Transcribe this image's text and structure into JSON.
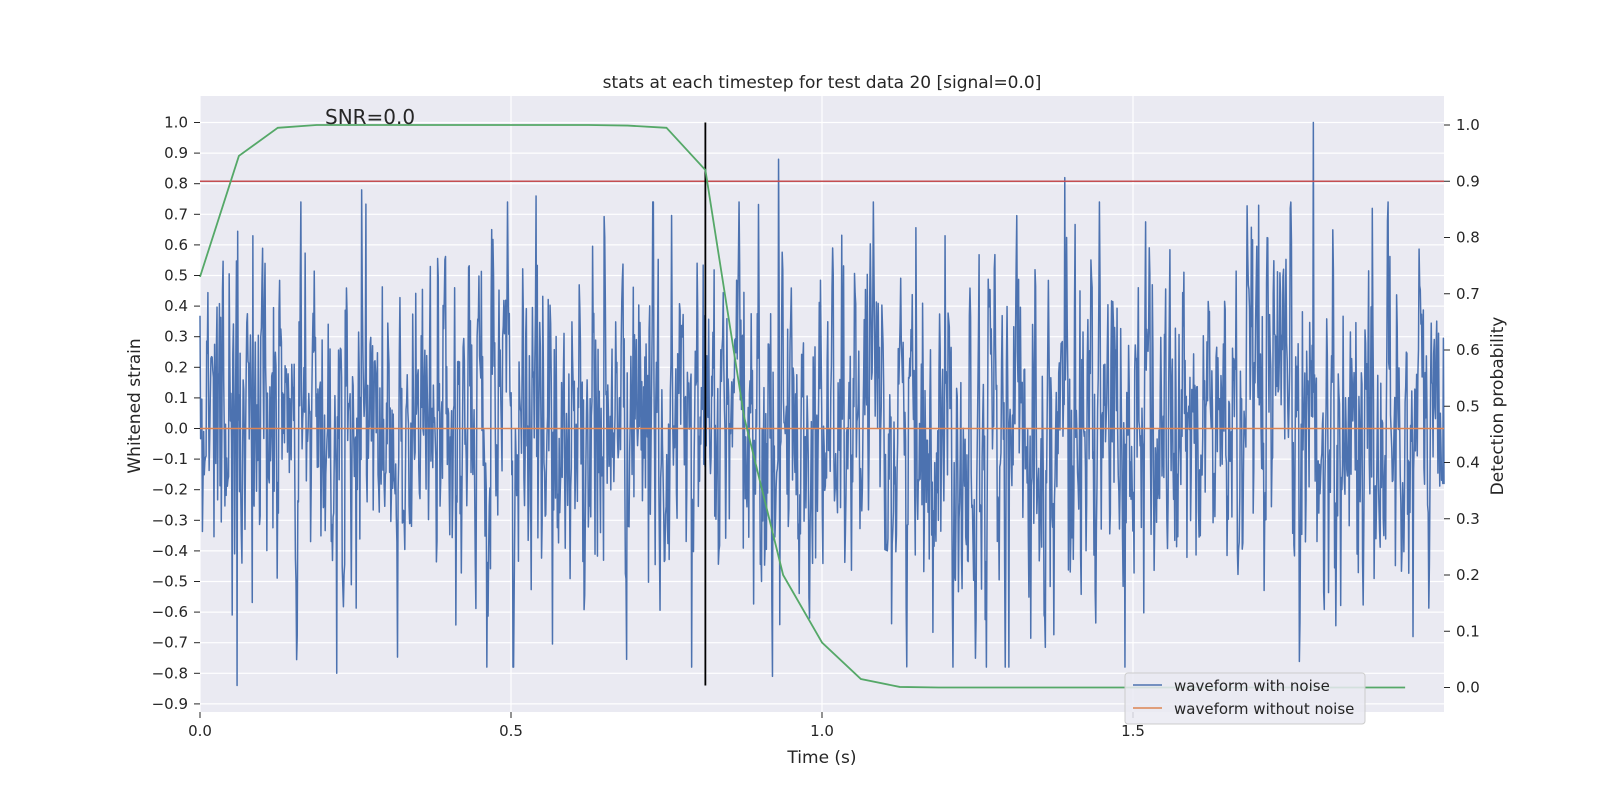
{
  "chart_data": {
    "type": "line",
    "title": "stats at each timestep for test data 20 [signal=0.0]",
    "annotation": "SNR=0.0",
    "xlabel": "Time (s)",
    "ylabel_left": "Whitened strain",
    "ylabel_right": "Detection probability",
    "xlim": [
      0.0,
      2.0
    ],
    "ylim_left": [
      -0.9,
      1.09
    ],
    "ylim_right": [
      -0.045,
      1.045
    ],
    "x_ticks": [
      0.0,
      0.5,
      1.0,
      1.5
    ],
    "x_tick_labels": [
      "0.0",
      "0.5",
      "1.0",
      "1.5"
    ],
    "y_ticks_left": [
      1.0,
      0.9,
      0.8,
      0.7,
      0.6,
      0.5,
      0.4,
      0.3,
      0.2,
      0.1,
      0.0,
      -0.1,
      -0.2,
      -0.3,
      -0.4,
      -0.5,
      -0.6,
      -0.7,
      -0.8,
      -0.9
    ],
    "y_tick_labels_left": [
      "1.0",
      "0.9",
      "0.8",
      "0.7",
      "0.6",
      "0.5",
      "0.4",
      "0.3",
      "0.2",
      "0.1",
      "0.0",
      "−0.1",
      "−0.2",
      "−0.3",
      "−0.4",
      "−0.5",
      "−0.6",
      "−0.7",
      "−0.8",
      "−0.9"
    ],
    "y_ticks_right": [
      1.0,
      0.9,
      0.8,
      0.7,
      0.6,
      0.5,
      0.4,
      0.3,
      0.2,
      0.1,
      0.0
    ],
    "y_tick_labels_right": [
      "1.0",
      "0.9",
      "0.8",
      "0.7",
      "0.6",
      "0.5",
      "0.4",
      "0.3",
      "0.2",
      "0.1",
      "0.0"
    ],
    "legend": {
      "placement": "lower-right",
      "entries": [
        {
          "label": "waveform with noise",
          "color": "#4c72b0"
        },
        {
          "label": "waveform without noise",
          "color": "#dd8452"
        }
      ]
    },
    "series": [
      {
        "name": "waveform with noise",
        "axis": "left",
        "color": "#4c72b0",
        "kind": "noise",
        "n_points": 2048,
        "x_range": [
          0.0,
          2.0
        ],
        "approx_std": 0.28,
        "notable_peaks": [
          {
            "x": 0.06,
            "y": -0.84
          },
          {
            "x": 0.085,
            "y": 0.63
          },
          {
            "x": 0.22,
            "y": -0.8
          },
          {
            "x": 0.26,
            "y": 0.78
          },
          {
            "x": 0.54,
            "y": 0.76
          },
          {
            "x": 0.79,
            "y": -0.78
          },
          {
            "x": 0.93,
            "y": 0.88
          },
          {
            "x": 0.92,
            "y": -0.81
          },
          {
            "x": 1.3,
            "y": -0.78
          },
          {
            "x": 1.39,
            "y": 0.82
          },
          {
            "x": 1.79,
            "y": 1.0
          },
          {
            "x": 1.95,
            "y": -0.68
          }
        ]
      },
      {
        "name": "waveform without noise",
        "axis": "left",
        "color": "#dd8452",
        "x": [
          0.0,
          2.0
        ],
        "y": [
          0.0,
          0.0
        ]
      },
      {
        "name": "detection probability",
        "axis": "right",
        "color": "#55a868",
        "x": [
          0.0,
          0.0625,
          0.125,
          0.1875,
          0.25,
          0.3125,
          0.375,
          0.4375,
          0.5,
          0.5625,
          0.625,
          0.6875,
          0.75,
          0.8125,
          0.875,
          0.9375,
          1.0,
          1.0625,
          1.125,
          1.1875,
          1.25,
          1.3125,
          1.375,
          1.4375,
          1.5,
          1.5625,
          1.625,
          1.6875,
          1.75,
          1.8125,
          1.875,
          1.9375
        ],
        "y": [
          0.73,
          0.945,
          0.995,
          1.0,
          1.0,
          1.0,
          1.0,
          1.0,
          1.0,
          1.0,
          1.0,
          0.999,
          0.995,
          0.92,
          0.48,
          0.2,
          0.08,
          0.015,
          0.001,
          0.0,
          0.0,
          0.0,
          0.0,
          0.0,
          0.0,
          0.0,
          0.0,
          0.0,
          0.0,
          0.0,
          0.0,
          0.0
        ]
      }
    ],
    "threshold": {
      "axis": "right",
      "y": 0.9,
      "color": "#c44e52"
    },
    "vertical_marker": {
      "x": 0.8125,
      "y_range": [
        -0.84,
        1.0
      ],
      "color": "#000000"
    }
  }
}
